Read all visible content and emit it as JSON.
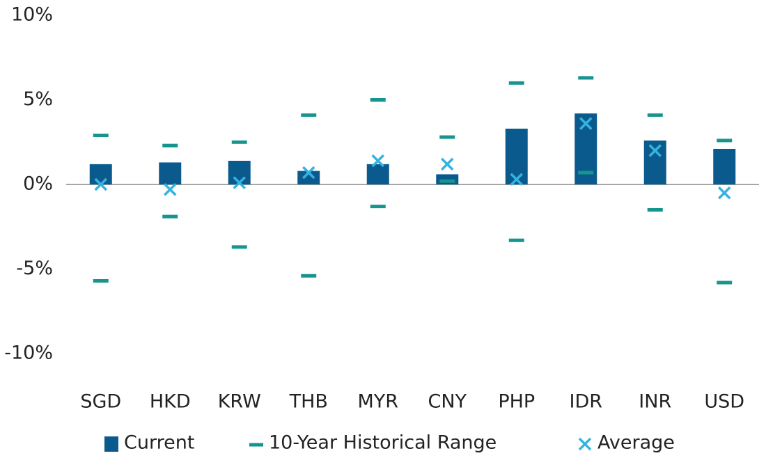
{
  "chart_data": {
    "type": "bar",
    "categories": [
      "SGD",
      "HKD",
      "KRW",
      "THB",
      "MYR",
      "CNY",
      "PHP",
      "IDR",
      "INR",
      "USD"
    ],
    "series": [
      {
        "name": "Current",
        "kind": "bar",
        "color": "#0b5a8e",
        "values": [
          1.2,
          1.3,
          1.4,
          0.8,
          1.2,
          0.6,
          3.3,
          4.2,
          2.6,
          2.1
        ]
      },
      {
        "name": "10-Year Historical Range",
        "kind": "range",
        "color": "#16958f",
        "high": [
          2.9,
          2.3,
          2.5,
          4.1,
          5.0,
          2.8,
          6.0,
          6.3,
          4.1,
          2.6
        ],
        "low": [
          -5.7,
          -1.9,
          -3.7,
          -5.4,
          -1.3,
          0.2,
          -3.3,
          0.7,
          -1.5,
          -5.8
        ]
      },
      {
        "name": "Average",
        "kind": "marker",
        "color": "#35b3e0",
        "values": [
          0,
          -0.3,
          0.1,
          0.7,
          1.4,
          1.2,
          0.3,
          3.6,
          2.0,
          -0.5
        ]
      }
    ],
    "ylim": [
      -10,
      10
    ],
    "yticks": [
      {
        "value": -10,
        "label": "-10%"
      },
      {
        "value": -5,
        "label": "-5%"
      },
      {
        "value": 0,
        "label": "0%"
      },
      {
        "value": 5,
        "label": "5%"
      },
      {
        "value": 10,
        "label": "10%"
      }
    ],
    "grid": false,
    "legend": "bottom"
  }
}
